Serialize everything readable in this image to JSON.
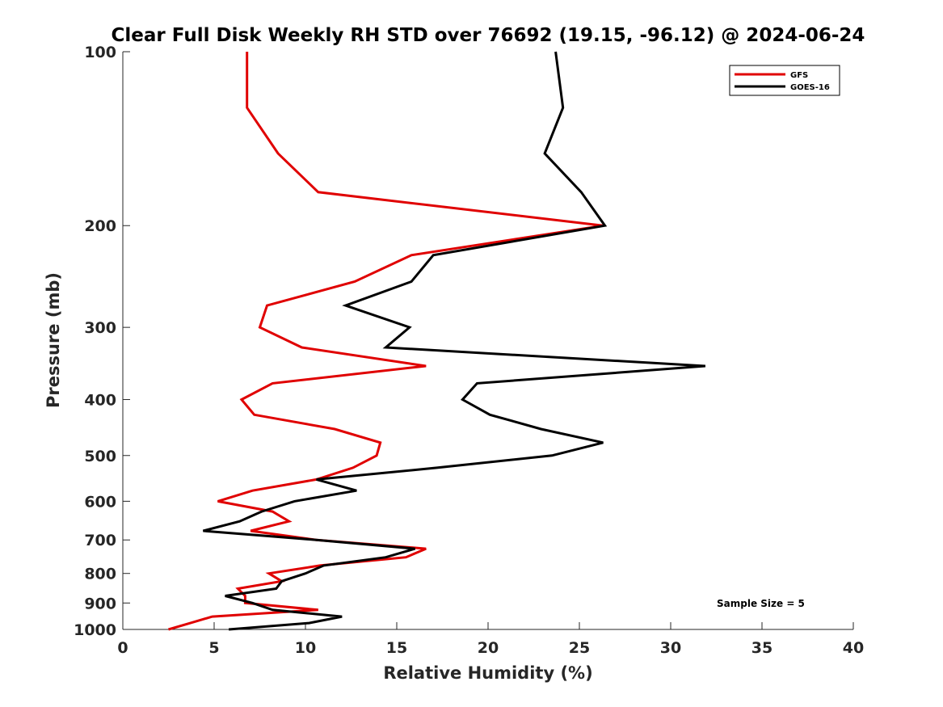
{
  "chart_data": {
    "type": "line",
    "title": "Clear Full Disk Weekly RH STD over 76692 (19.15, -96.12) @ 2024-06-24",
    "xlabel": "Relative Humidity (%)",
    "ylabel": "Pressure (mb)",
    "xlim": [
      0,
      40
    ],
    "ylim": [
      100,
      1000
    ],
    "yscale": "log",
    "y_reversed": true,
    "xticks": [
      0,
      5,
      10,
      15,
      20,
      25,
      30,
      35,
      40
    ],
    "yticks": [
      100,
      200,
      300,
      400,
      500,
      600,
      700,
      800,
      900,
      1000
    ],
    "grid": false,
    "legend_position": "top-right",
    "annotation": "Sample Size = 5",
    "series": [
      {
        "name": "GFS",
        "color": "#e00000",
        "pressure": [
          100,
          125,
          150,
          175,
          200,
          225,
          250,
          275,
          300,
          325,
          350,
          375,
          400,
          425,
          450,
          475,
          500,
          525,
          550,
          575,
          600,
          625,
          650,
          675,
          700,
          725,
          750,
          775,
          800,
          825,
          850,
          875,
          900,
          925,
          950,
          975,
          1000
        ],
        "values": [
          6.8,
          6.8,
          8.5,
          10.7,
          26.3,
          15.8,
          12.7,
          7.9,
          7.5,
          9.8,
          16.6,
          8.2,
          6.5,
          7.2,
          11.6,
          14.1,
          13.9,
          12.6,
          10.6,
          7.1,
          5.2,
          8.2,
          9.1,
          7.0,
          10.6,
          16.6,
          15.5,
          10.8,
          8.0,
          8.7,
          6.3,
          6.7,
          6.7,
          10.7,
          4.9,
          3.7,
          2.5
        ]
      },
      {
        "name": "GOES-16",
        "color": "#000000",
        "pressure": [
          100,
          125,
          150,
          175,
          200,
          225,
          250,
          275,
          300,
          325,
          350,
          375,
          400,
          425,
          450,
          475,
          500,
          525,
          550,
          575,
          600,
          625,
          650,
          675,
          700,
          725,
          750,
          775,
          800,
          825,
          850,
          875,
          900,
          925,
          950,
          975,
          1000
        ],
        "values": [
          23.7,
          24.1,
          23.1,
          25.1,
          26.4,
          17.0,
          15.8,
          12.2,
          15.7,
          14.4,
          31.9,
          19.4,
          18.6,
          20.1,
          22.9,
          26.3,
          23.5,
          17.2,
          10.6,
          12.8,
          9.4,
          7.6,
          6.4,
          4.4,
          10.6,
          16.0,
          14.4,
          11.0,
          10.0,
          8.7,
          8.4,
          5.6,
          7.1,
          8.2,
          12.0,
          10.2,
          5.8
        ]
      }
    ]
  }
}
